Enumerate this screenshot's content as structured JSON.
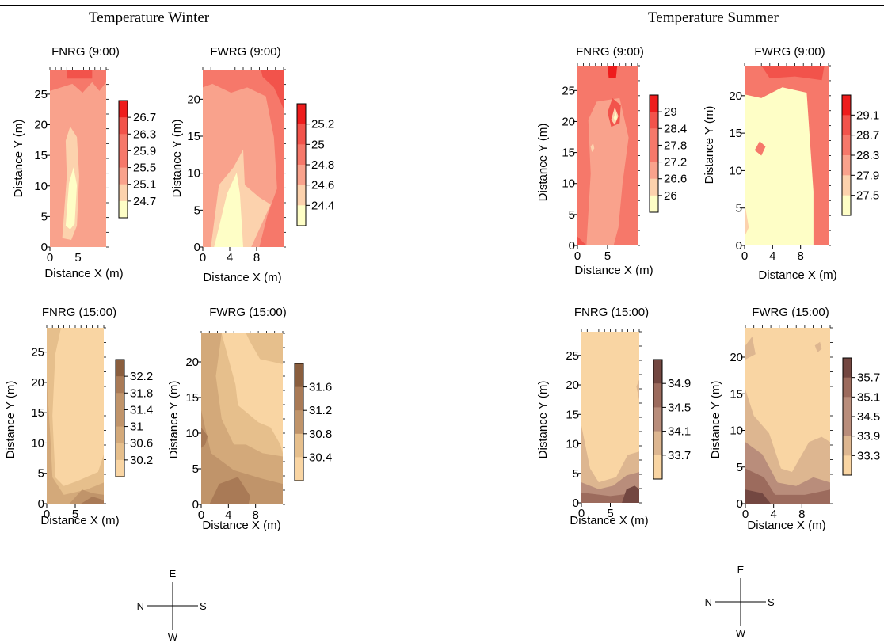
{
  "figure": {
    "winter_title": "Temperature Winter",
    "summer_title": "Temperature Summer"
  },
  "compass": {
    "north": "N",
    "south": "S",
    "east": "E",
    "west": "W"
  },
  "colors": {
    "warm_scale": [
      "#fefec6",
      "#fcd2ad",
      "#f9a28c",
      "#f6786a",
      "#f2534b",
      "#ee1c1c"
    ],
    "tan_scale": [
      "#f9d5a3",
      "#e6bf8c",
      "#d3a97a",
      "#c0946a",
      "#a97a56",
      "#8a5e3e"
    ],
    "summer_pm_scale": [
      "#f9d5a3",
      "#ddb690",
      "#b98d7b",
      "#9c6b5d",
      "#734741"
    ]
  },
  "chart_data": [
    {
      "type": "heatmap",
      "title": "FNRG (9:00)",
      "xlabel": "Distance X (m)",
      "ylabel": "Distance Y (m)",
      "xlim": [
        0,
        10
      ],
      "ylim": [
        0,
        29
      ],
      "xticks": [
        0,
        5
      ],
      "yticks": [
        0,
        5,
        10,
        15,
        20,
        25
      ],
      "colorbar_labels": [
        "26.7",
        "26.3",
        "25.9",
        "25.5",
        "25.1",
        "24.7"
      ],
      "colorbar_levels": [
        26.7,
        26.3,
        25.9,
        25.5,
        25.1,
        24.7
      ]
    },
    {
      "type": "heatmap",
      "title": "FWRG (9:00)",
      "xlabel": "Distance X (m)",
      "ylabel": "Distance Y (m)",
      "xlim": [
        0,
        12
      ],
      "ylim": [
        0,
        24
      ],
      "xticks": [
        0,
        4,
        8
      ],
      "yticks": [
        0,
        5,
        10,
        15,
        20
      ],
      "colorbar_labels": [
        "25.2",
        "25",
        "24.8",
        "24.6",
        "24.4"
      ],
      "colorbar_levels": [
        25.2,
        25,
        24.8,
        24.6,
        24.4
      ]
    },
    {
      "type": "heatmap",
      "title": "FNRG (9:00)",
      "xlabel": "Distance X (m)",
      "ylabel": "Distance Y (m)",
      "xlim": [
        0,
        10
      ],
      "ylim": [
        0,
        29
      ],
      "xticks": [
        0,
        5
      ],
      "yticks": [
        0,
        5,
        10,
        15,
        20,
        25
      ],
      "colorbar_labels": [
        "29",
        "28.4",
        "27.8",
        "27.2",
        "26.6",
        "26"
      ],
      "colorbar_levels": [
        29,
        28.4,
        27.8,
        27.2,
        26.6,
        26
      ]
    },
    {
      "type": "heatmap",
      "title": "FWRG (9:00)",
      "xlabel": "Distance X (m)",
      "ylabel": "Distance Y (m)",
      "xlim": [
        0,
        12
      ],
      "ylim": [
        0,
        24
      ],
      "xticks": [
        0,
        4,
        8
      ],
      "yticks": [
        0,
        5,
        10,
        15,
        20
      ],
      "colorbar_labels": [
        "29.1",
        "28.7",
        "28.3",
        "27.9",
        "27.5"
      ],
      "colorbar_levels": [
        29.1,
        28.7,
        28.3,
        27.9,
        27.5
      ]
    },
    {
      "type": "heatmap",
      "title": "FNRG (15:00)",
      "xlabel": "Distance X (m)",
      "ylabel": "Distance Y (m)",
      "xlim": [
        0,
        10
      ],
      "ylim": [
        0,
        29
      ],
      "xticks": [
        0,
        5
      ],
      "yticks": [
        0,
        5,
        10,
        15,
        20,
        25
      ],
      "colorbar_labels": [
        "32.2",
        "31.8",
        "31.4",
        "31",
        "30.6",
        "30.2"
      ],
      "colorbar_levels": [
        32.2,
        31.8,
        31.4,
        31,
        30.6,
        30.2
      ]
    },
    {
      "type": "heatmap",
      "title": "FWRG (15:00)",
      "xlabel": "Distance X (m)",
      "ylabel": "Distance Y (m)",
      "xlim": [
        0,
        12
      ],
      "ylim": [
        0,
        24
      ],
      "xticks": [
        0,
        4,
        8
      ],
      "yticks": [
        0,
        5,
        10,
        15,
        20
      ],
      "colorbar_labels": [
        "31.6",
        "31.2",
        "30.8",
        "30.4"
      ],
      "colorbar_levels": [
        31.6,
        31.2,
        30.8,
        30.4
      ]
    },
    {
      "type": "heatmap",
      "title": "FNRG (15:00)",
      "xlabel": "Distance X (m)",
      "ylabel": "Distance Y (m)",
      "xlim": [
        0,
        10
      ],
      "ylim": [
        0,
        29
      ],
      "xticks": [
        0,
        5
      ],
      "yticks": [
        0,
        5,
        10,
        15,
        20,
        25
      ],
      "colorbar_labels": [
        "34.9",
        "34.5",
        "34.1",
        "33.7"
      ],
      "colorbar_levels": [
        34.9,
        34.5,
        34.1,
        33.7
      ]
    },
    {
      "type": "heatmap",
      "title": "FWRG (15:00)",
      "xlabel": "Distance X (m)",
      "ylabel": "Distance Y (m)",
      "xlim": [
        0,
        12
      ],
      "ylim": [
        0,
        24
      ],
      "xticks": [
        0,
        4,
        8
      ],
      "yticks": [
        0,
        5,
        10,
        15,
        20
      ],
      "colorbar_labels": [
        "35.7",
        "35.1",
        "34.5",
        "33.9",
        "33.3"
      ],
      "colorbar_levels": [
        35.7,
        35.1,
        34.5,
        33.9,
        33.3
      ]
    }
  ]
}
